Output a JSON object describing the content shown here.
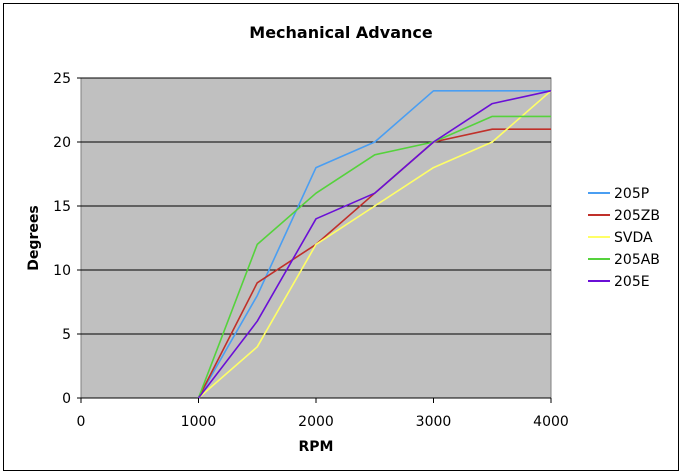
{
  "chart_data": {
    "type": "line",
    "title": "Mechanical Advance",
    "xlabel": "RPM",
    "ylabel": "Degrees",
    "xlim": [
      0,
      4000
    ],
    "ylim": [
      0,
      25
    ],
    "x_ticks": [
      0,
      1000,
      2000,
      3000,
      4000
    ],
    "y_ticks": [
      0,
      5,
      10,
      15,
      20,
      25
    ],
    "grid": "horizontal",
    "plot_background": "#c0c0c0",
    "legend_position": "right",
    "x": [
      1000,
      1500,
      2000,
      2500,
      3000,
      3500,
      4000
    ],
    "series": [
      {
        "name": "205P",
        "color": "#4a9ef2",
        "values": [
          0,
          8,
          18,
          20,
          24,
          24,
          24
        ]
      },
      {
        "name": "205ZB",
        "color": "#c0302a",
        "values": [
          0,
          9,
          12,
          16,
          20,
          21,
          21
        ]
      },
      {
        "name": "SVDA",
        "color": "#ffff66",
        "values": [
          0,
          4,
          12,
          15,
          18,
          20,
          24
        ]
      },
      {
        "name": "205AB",
        "color": "#55d23c",
        "values": [
          0,
          12,
          16,
          19,
          20,
          22,
          22
        ]
      },
      {
        "name": "205E",
        "color": "#6a0fd6",
        "values": [
          0,
          6,
          14,
          16,
          20,
          23,
          24
        ]
      }
    ]
  }
}
